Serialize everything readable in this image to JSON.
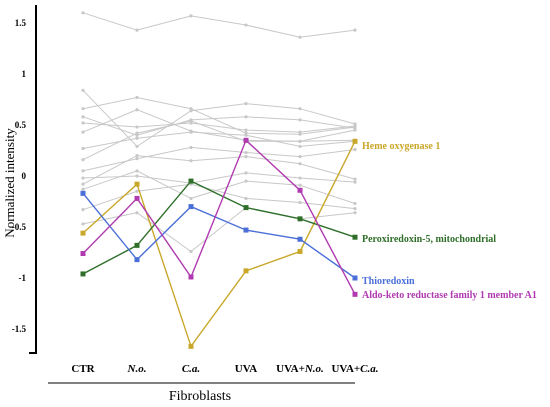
{
  "chart_data": {
    "type": "line",
    "ylabel": "Normalized intensity",
    "xgroup_label": "Fibroblasts",
    "ylim": [
      -1.75,
      1.65
    ],
    "yticks": [
      -1.5,
      -1,
      -0.5,
      0,
      0.5,
      1,
      1.5
    ],
    "ytick_labels": [
      "-1.5",
      "-1",
      "-0.5",
      "0",
      "0.5",
      "1",
      "1.5"
    ],
    "categories": [
      {
        "label": "CTR",
        "italic": false
      },
      {
        "label": "N.o.",
        "italic": true
      },
      {
        "label": "C.a.",
        "italic": true
      },
      {
        "label": "UVA",
        "italic": false
      },
      {
        "label": "UVA+",
        "italic_suffix": "N.o."
      },
      {
        "label": "UVA+",
        "italic_suffix": "C.a."
      }
    ],
    "background_series": [
      [
        1.6,
        1.43,
        1.57,
        1.48,
        1.36,
        1.43
      ],
      [
        0.84,
        0.29,
        0.64,
        0.71,
        0.66,
        0.51
      ],
      [
        0.66,
        0.77,
        0.66,
        0.42,
        0.41,
        0.48
      ],
      [
        0.58,
        0.4,
        0.55,
        0.58,
        0.55,
        0.47
      ],
      [
        0.52,
        0.48,
        0.52,
        0.45,
        0.43,
        0.49
      ],
      [
        0.43,
        0.65,
        0.44,
        0.35,
        0.34,
        0.45
      ],
      [
        0.27,
        0.37,
        0.43,
        0.4,
        0.29,
        0.34
      ],
      [
        0.16,
        0.42,
        0.54,
        0.34,
        0.34,
        0.35
      ],
      [
        0.05,
        0.17,
        0.28,
        0.23,
        0.19,
        0.26
      ],
      [
        -0.02,
        0.0,
        -0.07,
        0.03,
        -0.02,
        -0.06
      ],
      [
        -0.08,
        0.2,
        0.15,
        0.19,
        0.12,
        -0.03
      ],
      [
        -0.13,
        0.05,
        -0.22,
        -0.05,
        -0.09,
        -0.27
      ],
      [
        -0.33,
        -0.15,
        -0.08,
        -0.22,
        -0.26,
        -0.32
      ],
      [
        -0.47,
        -0.36,
        -0.74,
        -0.31,
        -0.42,
        -0.36
      ]
    ],
    "series": [
      {
        "name": "Heme oxygenase 1",
        "color": "#c9a72a",
        "values": [
          -0.56,
          -0.08,
          -1.67,
          -0.93,
          -0.74,
          0.34
        ]
      },
      {
        "name": "Peroxiredoxin-5, mitochondrial",
        "color": "#2f6f2a",
        "values": [
          -0.96,
          -0.68,
          -0.05,
          -0.31,
          -0.42,
          -0.6
        ]
      },
      {
        "name": "Thioredoxin",
        "color": "#4a6fd8",
        "values": [
          -0.17,
          -0.82,
          -0.3,
          -0.53,
          -0.62,
          -1.0
        ]
      },
      {
        "name": "Aldo-keto reductase family 1 member A1",
        "color": "#b03ab0",
        "values": [
          -0.76,
          -0.22,
          -0.99,
          0.35,
          -0.14,
          -1.16
        ]
      }
    ]
  }
}
